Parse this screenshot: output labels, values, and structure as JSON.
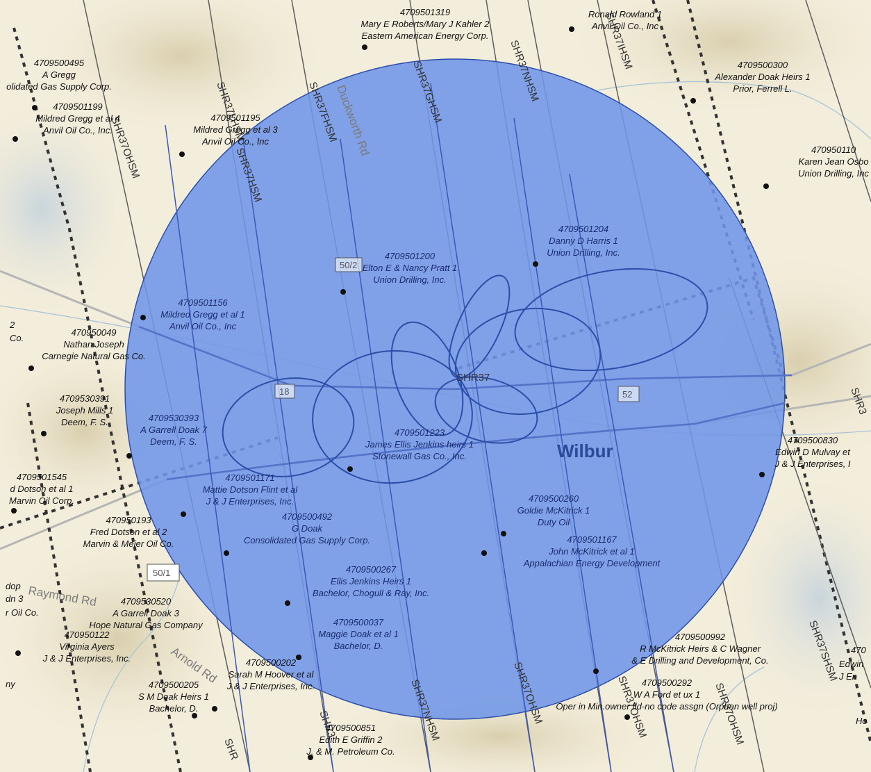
{
  "colors": {
    "buffer_fill": "#6f96e8",
    "buffer_stroke": "#2b4fa8",
    "well_marker": "#111111",
    "terrain_base": "#f3eddb"
  },
  "wells": [
    {
      "id": "4709501319",
      "owner": "Mary E Roberts/Mary J Kahler 2",
      "operator": "Eastern American Energy Corp.",
      "inside": false
    },
    {
      "id": "",
      "owner": "Ronald Rowland 1",
      "operator": "Anvil Oil Co., Inc",
      "inside": false
    },
    {
      "id": "4709500495",
      "owner": "A Gregg",
      "operator": "olidated Gas Supply Corp.",
      "inside": false
    },
    {
      "id": "4709501199",
      "owner": "Mildred Gregg et al 4",
      "operator": "Anvil Oil Co., Inc.",
      "inside": false
    },
    {
      "id": "4709501195",
      "owner": "Mildred Gregg et al 3",
      "operator": "Anvil Oil Co., Inc",
      "inside": false
    },
    {
      "id": "4709500300",
      "owner": "Alexander Doak Heirs 1",
      "operator": "Prior, Ferrell L.",
      "inside": false
    },
    {
      "id": "470950110",
      "owner": "Karen Jean Osbo",
      "operator": "Union Drilling, Inc",
      "inside": false
    },
    {
      "id": "4709501204",
      "owner": "Danny D Harris 1",
      "operator": "Union Drilling, Inc.",
      "inside": true
    },
    {
      "id": "4709501200",
      "owner": "Elton E & Nancy Pratt 1",
      "operator": "Union Drilling, Inc.",
      "inside": true
    },
    {
      "id": "4709501156",
      "owner": "Mildred Gregg et al 1",
      "operator": "Anvil Oil Co., Inc",
      "inside": true
    },
    {
      "id": "470950049",
      "owner": "Nathan Joseph",
      "operator": "Carnegie Natural Gas Co.",
      "inside": false
    },
    {
      "id": "4709530391",
      "owner": "Joseph Mills 1",
      "operator": "Deem, F. S.",
      "inside": false
    },
    {
      "id": "4709530393",
      "owner": "A Garrell Doak 7",
      "operator": "Deem, F. S.",
      "inside": true
    },
    {
      "id": "4709501223",
      "owner": "James Ellis Jenkins heirs 1",
      "operator": "Stonewall Gas Co., Inc.",
      "inside": true
    },
    {
      "id": "4709500830",
      "owner": "Edwin D Mulvay et",
      "operator": "J & J Enterprises, I",
      "inside": false
    },
    {
      "id": "4709501545",
      "owner": "d Dotson et al 1",
      "operator": "Marvin Oil Corp.",
      "inside": false
    },
    {
      "id": "4709501171",
      "owner": "Mattie Dotson Flint et al",
      "operator": "J & J Enterprises, Inc.",
      "inside": true
    },
    {
      "id": "470950193",
      "owner": "Fred Dotson et al 2",
      "operator": "Marvin & Meier Oil Co.",
      "inside": false
    },
    {
      "id": "4709500492",
      "owner": "G Doak",
      "operator": "Consolidated Gas Supply Corp.",
      "inside": true
    },
    {
      "id": "4709500260",
      "owner": "Goldie McKitrick 1",
      "operator": "Duty Oil",
      "inside": true
    },
    {
      "id": "4709501167",
      "owner": "John McKitrick et al 1",
      "operator": "Appalachian Energy Development",
      "inside": true
    },
    {
      "id": "4709500267",
      "owner": "Ellis Jenkins Heirs 1",
      "operator": "Bachelor, Chogull & Ray, Inc.",
      "inside": true
    },
    {
      "id": "4709530520",
      "owner": "A Garrell Doak 3",
      "operator": "Hope Natural Gas Company",
      "inside": false
    },
    {
      "id": "470950122",
      "owner": "Virginia Ayers",
      "operator": "J & J Enterprises, Inc.",
      "inside": false
    },
    {
      "id": "4709500037",
      "owner": "Maggie Doak et al 1",
      "operator": "Bachelor, D.",
      "inside": true
    },
    {
      "id": "4709500992",
      "owner": "R McKitrick Heirs & C Wagner",
      "operator": "& E Drilling and Development, Co.",
      "inside": false
    },
    {
      "id": "4709500292",
      "owner": "W A Ford et ux 1",
      "operator": "Oper in Min.owner fld-no code assgn (Orphan well proj)",
      "inside": false
    },
    {
      "id": "4709500202",
      "owner": "Sarah M Hoover et al",
      "operator": "J & J Enterprises, Inc.",
      "inside": false
    },
    {
      "id": "4709500205",
      "owner": "S M Doak Heirs 1",
      "operator": "Bachelor, D.",
      "inside": false
    },
    {
      "id": "4709500851",
      "owner": "Edith E Griffin 2",
      "operator": "J. & M. Petroleum Co.",
      "inside": false
    }
  ],
  "edge_fragments": [
    "2",
    "Co.",
    "dop",
    "dn 3",
    "r Oil Co.",
    "ny",
    "Edwin",
    "J En",
    "470",
    "Ho"
  ],
  "roads": {
    "duckworth": "Duckworth Rd",
    "raymond": "Raymond Rd",
    "arnold": "Arnold Rd"
  },
  "shields": [
    "50/2",
    "18",
    "52",
    "50/1"
  ],
  "line_labels": {
    "shr37": "SHR37",
    "nhsm": "SHR37NHSM",
    "ghsm": "SHR37GHSM",
    "fhsm": "SHR37FHSM",
    "ihsm": "SHR37IHSM",
    "ohsm": "SHR37OHSM",
    "shsm": "SHR37SHSM",
    "hsm": "SHR37HSM",
    "lhsm": "SHR37LHSM",
    "shr3": "SHR3",
    "shr": "SHR"
  },
  "town": "Wilbur"
}
